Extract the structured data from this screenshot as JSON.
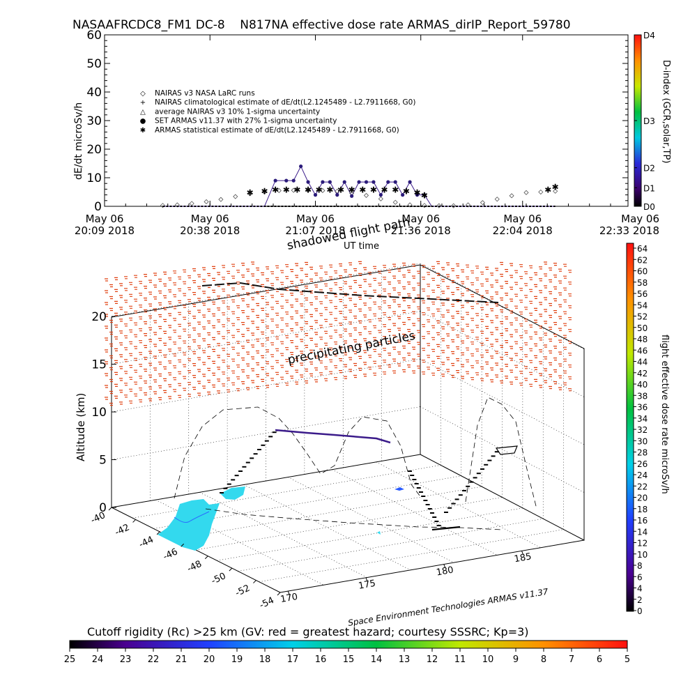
{
  "chart_data": [
    {
      "type": "line",
      "title": "NASAAFRCDC8_FM1 DC-8    N817NA effective dose rate ARMAS_dirIP_Report_59780",
      "ylabel": "dE/dt microSv/h",
      "xlabel": "UT time",
      "ylim": [
        0,
        60
      ],
      "yticks": [
        "0",
        "10",
        "20",
        "30",
        "40",
        "50",
        "60"
      ],
      "xticks": [
        {
          "line1": "May 06",
          "line2": "20:09 2018"
        },
        {
          "line1": "May 06",
          "line2": "20:38 2018"
        },
        {
          "line1": "May 06",
          "line2": "21:07 2018"
        },
        {
          "line1": "May 06",
          "line2": "21:36 2018"
        },
        {
          "line1": "May 06",
          "line2": "22:04 2018"
        },
        {
          "line1": "May 06",
          "line2": "22:33 2018"
        }
      ],
      "xtick_minutes": [
        0,
        29,
        58,
        87,
        115,
        144
      ],
      "right_axis": {
        "label": "D-index (GCR,solar,TP)",
        "ticks": [
          {
            "label": "D0",
            "value": 0
          },
          {
            "label": "D1",
            "value": 6.5
          },
          {
            "label": "D2",
            "value": 13.5
          },
          {
            "label": "D3",
            "value": 30
          },
          {
            "label": "D4",
            "value": 60
          }
        ]
      },
      "legend_placement": "upper-left",
      "legend": [
        {
          "symbol": "◇",
          "label": "NAIRAS v3 NASA LaRC runs"
        },
        {
          "symbol": "+",
          "label": "NAIRAS climatological estimate of dE/dt(L2.1245489 - L2.7911668, G0)"
        },
        {
          "symbol": "△",
          "label": "average NAIRAS v3 10% 1-sigma uncertainty"
        },
        {
          "symbol": "●",
          "label": "SET ARMAS v11.37 with 27% 1-sigma uncertainty"
        },
        {
          "symbol": "✱",
          "label": "ARMAS statistical estimate of dE/dt(L2.1245489 - L2.7911668, G0)"
        }
      ],
      "series": [
        {
          "name": "NAIRAS v3 NASA LaRC runs",
          "x_minutes": [
            16,
            20,
            24,
            28,
            32,
            36,
            40,
            44,
            48,
            52,
            56,
            60,
            64,
            68,
            72,
            76,
            80,
            84,
            88,
            92,
            96,
            100,
            104,
            108,
            112,
            116,
            120,
            124
          ],
          "values": [
            0.3,
            0.5,
            1,
            1.6,
            2.4,
            3.4,
            4.4,
            5,
            5.5,
            5.6,
            5.6,
            5.5,
            5.3,
            4.6,
            3.8,
            2.6,
            1.4,
            0.5,
            0.3,
            0.2,
            0.2,
            0.5,
            1.3,
            2.5,
            3.7,
            4.8,
            5,
            5.3
          ]
        },
        {
          "name": "SET ARMAS v11.37 with 27% 1-sigma uncertainty",
          "x_minutes": [
            16,
            20,
            24,
            28,
            32,
            36,
            40,
            44,
            47,
            50,
            52,
            54,
            56,
            58,
            60,
            62,
            64,
            66,
            68,
            70,
            72,
            74,
            76,
            78,
            80,
            82,
            84,
            86,
            88,
            90,
            92,
            96,
            100,
            104,
            108,
            112,
            116,
            120,
            124
          ],
          "values": [
            0,
            0,
            0,
            0,
            0,
            0,
            0,
            0,
            9,
            9,
            9,
            14,
            8.5,
            4,
            8.5,
            8.5,
            4,
            8.5,
            3.6,
            8.5,
            8.5,
            8.5,
            4,
            8.5,
            8.5,
            4,
            8.5,
            4,
            4,
            0,
            0,
            0,
            0,
            0,
            0,
            0,
            0,
            0,
            0
          ]
        },
        {
          "name": "ARMAS statistical estimate of dE/dt(L2.1245489 - L2.7911668, G0)",
          "x_minutes": [
            40,
            44,
            47,
            50,
            53,
            56,
            59,
            62,
            65,
            68,
            71,
            74,
            77,
            80,
            83,
            86,
            88,
            122,
            124
          ],
          "values": [
            5,
            5.5,
            6,
            6,
            6,
            6,
            6,
            6,
            6,
            6,
            6,
            6,
            6,
            6,
            5.5,
            5,
            4,
            6,
            7
          ]
        }
      ]
    },
    {
      "type": "scatter",
      "subtype": "3d",
      "zlabel": "Altitude (km)",
      "zticks": [
        "0",
        "5",
        "10",
        "15",
        "20"
      ],
      "lat_ticks": [
        "-40",
        "-42",
        "-44",
        "-46",
        "-48",
        "-50",
        "-52",
        "-54"
      ],
      "lon_ticks": [
        "170",
        "175",
        "180",
        "185"
      ],
      "annotations": [
        "shadowed flight path",
        "precipitating particles"
      ],
      "credit": "Space Environment Technologies ARMAS v11.37",
      "flight_colorbar": {
        "label": "flight effective dose rate microSv/h",
        "ticks": [
          "0",
          "2",
          "4",
          "6",
          "8",
          "10",
          "12",
          "14",
          "16",
          "18",
          "20",
          "22",
          "24",
          "26",
          "28",
          "30",
          "32",
          "34",
          "36",
          "38",
          "40",
          "42",
          "44",
          "46",
          "48",
          "50",
          "52",
          "54",
          "56",
          "58",
          "60",
          "62",
          "64"
        ]
      },
      "rc_colorbar": {
        "label": "Cutoff rigidity (Rc) >25 km (GV: red = greatest hazard; courtesy SSSRC; Kp=3)",
        "ticks": [
          "25",
          "24",
          "23",
          "22",
          "21",
          "20",
          "19",
          "18",
          "17",
          "16",
          "15",
          "14",
          "13",
          "12",
          "11",
          "10",
          "9",
          "8",
          "7",
          "6",
          "5"
        ]
      }
    }
  ]
}
